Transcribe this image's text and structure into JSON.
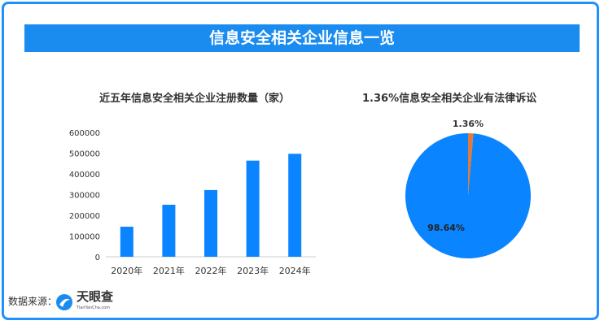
{
  "title": "信息安全相关企业信息一览",
  "source_label": "数据来源：",
  "logo": {
    "name": "天眼查",
    "subtitle": "TianYanCha.com"
  },
  "colors": {
    "primary": "#1a8cf0",
    "bar": "#0a84ff",
    "pie_main": "#0a84ff",
    "pie_minor": "#e07b39"
  },
  "chart_data": [
    {
      "type": "bar",
      "title": "近五年信息安全相关企业注册数量（家）",
      "categories": [
        "2020年",
        "2021年",
        "2022年",
        "2023年",
        "2024年"
      ],
      "values": [
        145000,
        251000,
        322000,
        464000,
        497000
      ],
      "yticks": [
        "0",
        "100000",
        "200000",
        "300000",
        "400000",
        "500000",
        "600000"
      ],
      "ylim": [
        0,
        600000
      ],
      "grid": false
    },
    {
      "type": "pie",
      "title": "1.36%信息安全相关企业有法律诉讼",
      "slices": [
        {
          "label": "1.36%",
          "value": 1.36,
          "color": "#e07b39"
        },
        {
          "label": "98.64%",
          "value": 98.64,
          "color": "#0a84ff"
        }
      ]
    }
  ]
}
